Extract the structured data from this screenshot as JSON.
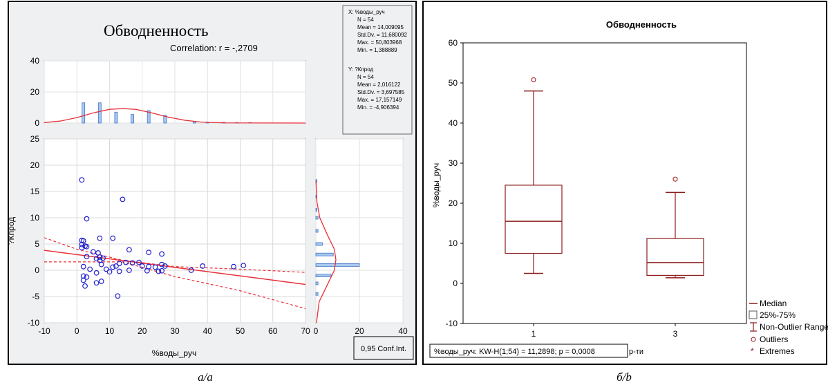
{
  "left": {
    "title": "Обводненность",
    "correlation": "Correlation: r = -,2709",
    "stats_x": [
      "X:  %воды_руч",
      "N = 54",
      "Mean = 14,009095",
      "Std.Dv. = 11,680092",
      "Max. = 50,803968",
      "Min. = 1,388889"
    ],
    "stats_y": [
      "Y:  ?Кпрод",
      "N = 54",
      "Mean = 2,016122",
      "Std.Dv. = 3,697585",
      "Max. = 17,157149",
      "Min. = -4,906394"
    ],
    "xlabel": "%воды_руч",
    "ylabel": "?Кпрод",
    "conf_label": "0,95 Conf.Int.",
    "caption": "а/a",
    "main_xticks": [
      "-10",
      "0",
      "10",
      "20",
      "30",
      "40",
      "50",
      "60",
      "70"
    ],
    "main_yticks": [
      "25",
      "20",
      "15",
      "10",
      "5",
      "0",
      "-5",
      "-10"
    ],
    "top_yticks": [
      "40",
      "20",
      "0"
    ],
    "side_xticks": [
      "0",
      "20",
      "40"
    ]
  },
  "right": {
    "title": "Обводненность",
    "ylabel": "%воды_руч",
    "yticks": [
      "60",
      "50",
      "40",
      "30",
      "20",
      "10",
      "0",
      "-10"
    ],
    "categories": [
      "1",
      "3"
    ],
    "test_label": "%воды_руч:  KW-H(1;54) = 11,2898; p = 0,0008",
    "test_suffix": "р-ти",
    "legend": [
      "Median",
      "25%-75%",
      "Non-Outlier Range",
      "Outliers",
      "Extremes"
    ],
    "caption": "б/b"
  },
  "chart_data": [
    {
      "type": "scatter",
      "title": "Обводненность",
      "subtitle": "Correlation: r = -,2709",
      "xlabel": "%воды_руч",
      "ylabel": "?Кпрод",
      "xlim": [
        -10,
        70
      ],
      "ylim": [
        -10,
        25
      ],
      "grid": true,
      "points": [
        [
          1.5,
          17.2
        ],
        [
          14,
          13.5
        ],
        [
          3,
          9.8
        ],
        [
          7,
          6.1
        ],
        [
          11,
          6.1
        ],
        [
          1.5,
          5.7
        ],
        [
          2,
          5.6
        ],
        [
          1.5,
          4.9
        ],
        [
          2.5,
          4.6
        ],
        [
          3,
          4.5
        ],
        [
          1.5,
          4.3
        ],
        [
          16,
          3.9
        ],
        [
          5,
          3.5
        ],
        [
          6.5,
          3.3
        ],
        [
          22,
          3.4
        ],
        [
          26,
          3.1
        ],
        [
          3,
          2.6
        ],
        [
          7,
          2.5
        ],
        [
          6,
          2.2
        ],
        [
          8,
          2.3
        ],
        [
          7,
          1.9
        ],
        [
          15,
          1.5
        ],
        [
          17,
          1.4
        ],
        [
          19,
          1.5
        ],
        [
          13,
          1.3
        ],
        [
          7.5,
          1.1
        ],
        [
          12,
          0.8
        ],
        [
          2,
          0.7
        ],
        [
          20,
          0.8
        ],
        [
          26,
          1.1
        ],
        [
          38.5,
          0.8
        ],
        [
          48,
          0.7
        ],
        [
          51,
          0.9
        ],
        [
          22,
          0.7
        ],
        [
          24,
          0.6
        ],
        [
          27,
          0.8
        ],
        [
          11,
          0.6
        ],
        [
          9,
          0.2
        ],
        [
          4,
          0.2
        ],
        [
          16,
          0.0
        ],
        [
          21.5,
          -0.1
        ],
        [
          13,
          -0.2
        ],
        [
          6,
          -0.5
        ],
        [
          25,
          -0.2
        ],
        [
          35,
          0.0
        ],
        [
          26,
          -0.1
        ],
        [
          10,
          -0.3
        ],
        [
          2,
          -1.1
        ],
        [
          3,
          -1.3
        ],
        [
          7.5,
          -2.1
        ],
        [
          6,
          -2.4
        ],
        [
          2,
          -1.9
        ],
        [
          2.5,
          -3.0
        ],
        [
          12.5,
          -4.9
        ]
      ],
      "regression": {
        "x": [
          -10,
          70
        ],
        "y": [
          3.8,
          -2.7
        ]
      },
      "conf_upper": [
        [
          -10,
          6.2
        ],
        [
          0,
          4.0
        ],
        [
          14,
          1.9
        ],
        [
          30,
          0.7
        ],
        [
          50,
          0.2
        ],
        [
          70,
          -0.4
        ]
      ],
      "conf_lower": [
        [
          -10,
          1.6
        ],
        [
          0,
          1.6
        ],
        [
          14,
          1.6
        ],
        [
          30,
          -1.2
        ],
        [
          50,
          -3.9
        ],
        [
          70,
          -7.3
        ]
      ],
      "x_hist": {
        "bins": [
          [
            2,
            13
          ],
          [
            7,
            13
          ],
          [
            12,
            7
          ],
          [
            17,
            5.5
          ],
          [
            22,
            8
          ],
          [
            27,
            5
          ],
          [
            36,
            1
          ],
          [
            40,
            0.5
          ],
          [
            45,
            0.5
          ],
          [
            49,
            0.3
          ],
          [
            53,
            0.3
          ]
        ],
        "ylim": [
          0,
          40
        ]
      },
      "x_curve": [
        [
          -10,
          0.3
        ],
        [
          -5,
          1.3
        ],
        [
          0,
          3.5
        ],
        [
          5,
          6.5
        ],
        [
          10,
          8.8
        ],
        [
          14,
          9.3
        ],
        [
          18,
          8.8
        ],
        [
          23,
          6.5
        ],
        [
          28,
          3.8
        ],
        [
          33,
          1.8
        ],
        [
          38,
          0.6
        ],
        [
          45,
          0.1
        ],
        [
          70,
          0
        ]
      ],
      "y_hist": {
        "bins": [
          [
            17,
            0.5
          ],
          [
            14,
            0.5
          ],
          [
            11.5,
            0.5
          ],
          [
            10,
            1
          ],
          [
            7.5,
            1
          ],
          [
            5,
            3
          ],
          [
            3,
            8
          ],
          [
            1,
            20
          ],
          [
            -1,
            7
          ],
          [
            -2.5,
            1
          ],
          [
            -4.5,
            1
          ]
        ],
        "xlim": [
          0,
          40
        ]
      },
      "y_curve": [
        [
          -10,
          0.3
        ],
        [
          -6,
          1.5
        ],
        [
          -3,
          5
        ],
        [
          0,
          8.5
        ],
        [
          2,
          9.2
        ],
        [
          4,
          8.5
        ],
        [
          7,
          5
        ],
        [
          10,
          1.8
        ],
        [
          13,
          0.5
        ],
        [
          17,
          0.05
        ]
      ]
    },
    {
      "type": "box",
      "title": "Обводненность",
      "ylabel": "%воды_руч",
      "ylim": [
        -10,
        60
      ],
      "categories": [
        "1",
        "3"
      ],
      "boxes": [
        {
          "category": "1",
          "min": 2.5,
          "q1": 7.5,
          "median": 15.5,
          "q3": 24.5,
          "max": 48,
          "outliers": [
            50.8
          ]
        },
        {
          "category": "3",
          "min": 1.4,
          "q1": 2.0,
          "median": 5.2,
          "q3": 11.2,
          "max": 22.7,
          "outliers": [
            26
          ]
        }
      ],
      "test": "KW-H(1;54) = 11,2898; p = 0,0008",
      "legend": [
        "Median",
        "25%-75%",
        "Non-Outlier Range",
        "Outliers",
        "Extremes"
      ]
    }
  ]
}
